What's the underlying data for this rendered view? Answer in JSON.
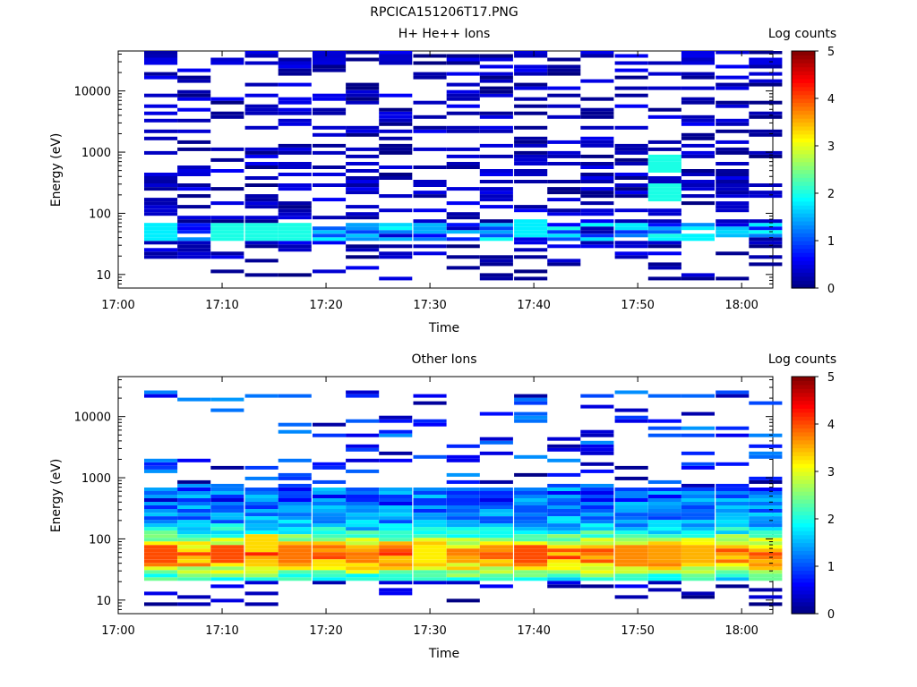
{
  "figure_title": "RPCICA151206T17.PNG",
  "chart_data": [
    {
      "type": "heatmap",
      "title": "H+ He++ Ions",
      "xlabel": "Time",
      "ylabel": "Energy (eV)",
      "x_ticks": [
        "17:00",
        "17:10",
        "17:20",
        "17:30",
        "17:40",
        "17:50",
        "18:00"
      ],
      "y_ticks": [
        "10",
        "100",
        "1000",
        "10000"
      ],
      "y_scale": "log",
      "ylim": [
        6,
        45000
      ],
      "xlim_minutes": [
        0,
        63
      ],
      "colorbar": {
        "label": "Log counts",
        "ticks": [
          "0",
          "1",
          "2",
          "3",
          "4",
          "5"
        ],
        "range": [
          0,
          5
        ]
      },
      "time_bins_minutes": [
        2.5,
        5.7,
        8.9,
        12.2,
        15.4,
        18.7,
        21.9,
        25.1,
        28.4,
        31.6,
        34.8,
        38.1,
        41.3,
        44.5,
        47.8,
        51.0,
        54.2,
        57.5,
        60.7
      ],
      "description_of_values": "Sparse mostly low log-count (~0-0.5) streaks from ~10 eV to ~40000 eV; brighter band (~1.5-2.5) near 35-60 eV around 17:02-17:18 and 17:37-17:40; elevated values (~1.5-2.2) near 150-700 eV around 17:50-17:53.",
      "highlights": [
        {
          "time_min": 4,
          "energy_ev": 45,
          "log_counts": 1.8
        },
        {
          "time_min": 12,
          "energy_ev": 45,
          "log_counts": 2.0
        },
        {
          "time_min": 16,
          "energy_ev": 45,
          "log_counts": 2.0
        },
        {
          "time_min": 40,
          "energy_ev": 50,
          "log_counts": 1.8
        },
        {
          "time_min": 52,
          "energy_ev": 200,
          "log_counts": 2.0
        },
        {
          "time_min": 52,
          "energy_ev": 600,
          "log_counts": 2.0
        }
      ]
    },
    {
      "type": "heatmap",
      "title": "Other Ions",
      "xlabel": "Time",
      "ylabel": "Energy (eV)",
      "x_ticks": [
        "17:00",
        "17:10",
        "17:20",
        "17:30",
        "17:40",
        "17:50",
        "18:00"
      ],
      "y_ticks": [
        "10",
        "100",
        "1000",
        "10000"
      ],
      "y_scale": "log",
      "ylim": [
        6,
        45000
      ],
      "xlim_minutes": [
        0,
        63
      ],
      "colorbar": {
        "label": "Log counts",
        "ticks": [
          "0",
          "1",
          "2",
          "3",
          "4",
          "5"
        ],
        "range": [
          0,
          5
        ]
      },
      "time_bins_minutes": [
        2.5,
        5.7,
        8.9,
        12.2,
        15.4,
        18.7,
        21.9,
        25.1,
        28.4,
        31.6,
        34.8,
        38.1,
        41.3,
        44.5,
        47.8,
        51.0,
        54.2,
        57.5,
        60.7
      ],
      "description_of_values": "Dense population from ~20 eV to ~600 eV with peak log counts ~3.5-4 near 40-60 eV; sparse streaks up to ~20000 eV.",
      "highlights": [
        {
          "time_min": 4,
          "energy_ev": 50,
          "log_counts": 4.0
        },
        {
          "time_min": 11,
          "energy_ev": 50,
          "log_counts": 4.0
        },
        {
          "time_min": 14,
          "energy_ev": 80,
          "log_counts": 3.3
        },
        {
          "time_min": 17,
          "energy_ev": 50,
          "log_counts": 3.8
        },
        {
          "time_min": 30,
          "energy_ev": 50,
          "log_counts": 3.2
        },
        {
          "time_min": 40,
          "energy_ev": 50,
          "log_counts": 4.0
        },
        {
          "time_min": 49,
          "energy_ev": 50,
          "log_counts": 3.7
        },
        {
          "time_min": 52,
          "energy_ev": 50,
          "log_counts": 3.6
        },
        {
          "time_min": 55,
          "energy_ev": 50,
          "log_counts": 3.5
        }
      ]
    }
  ]
}
